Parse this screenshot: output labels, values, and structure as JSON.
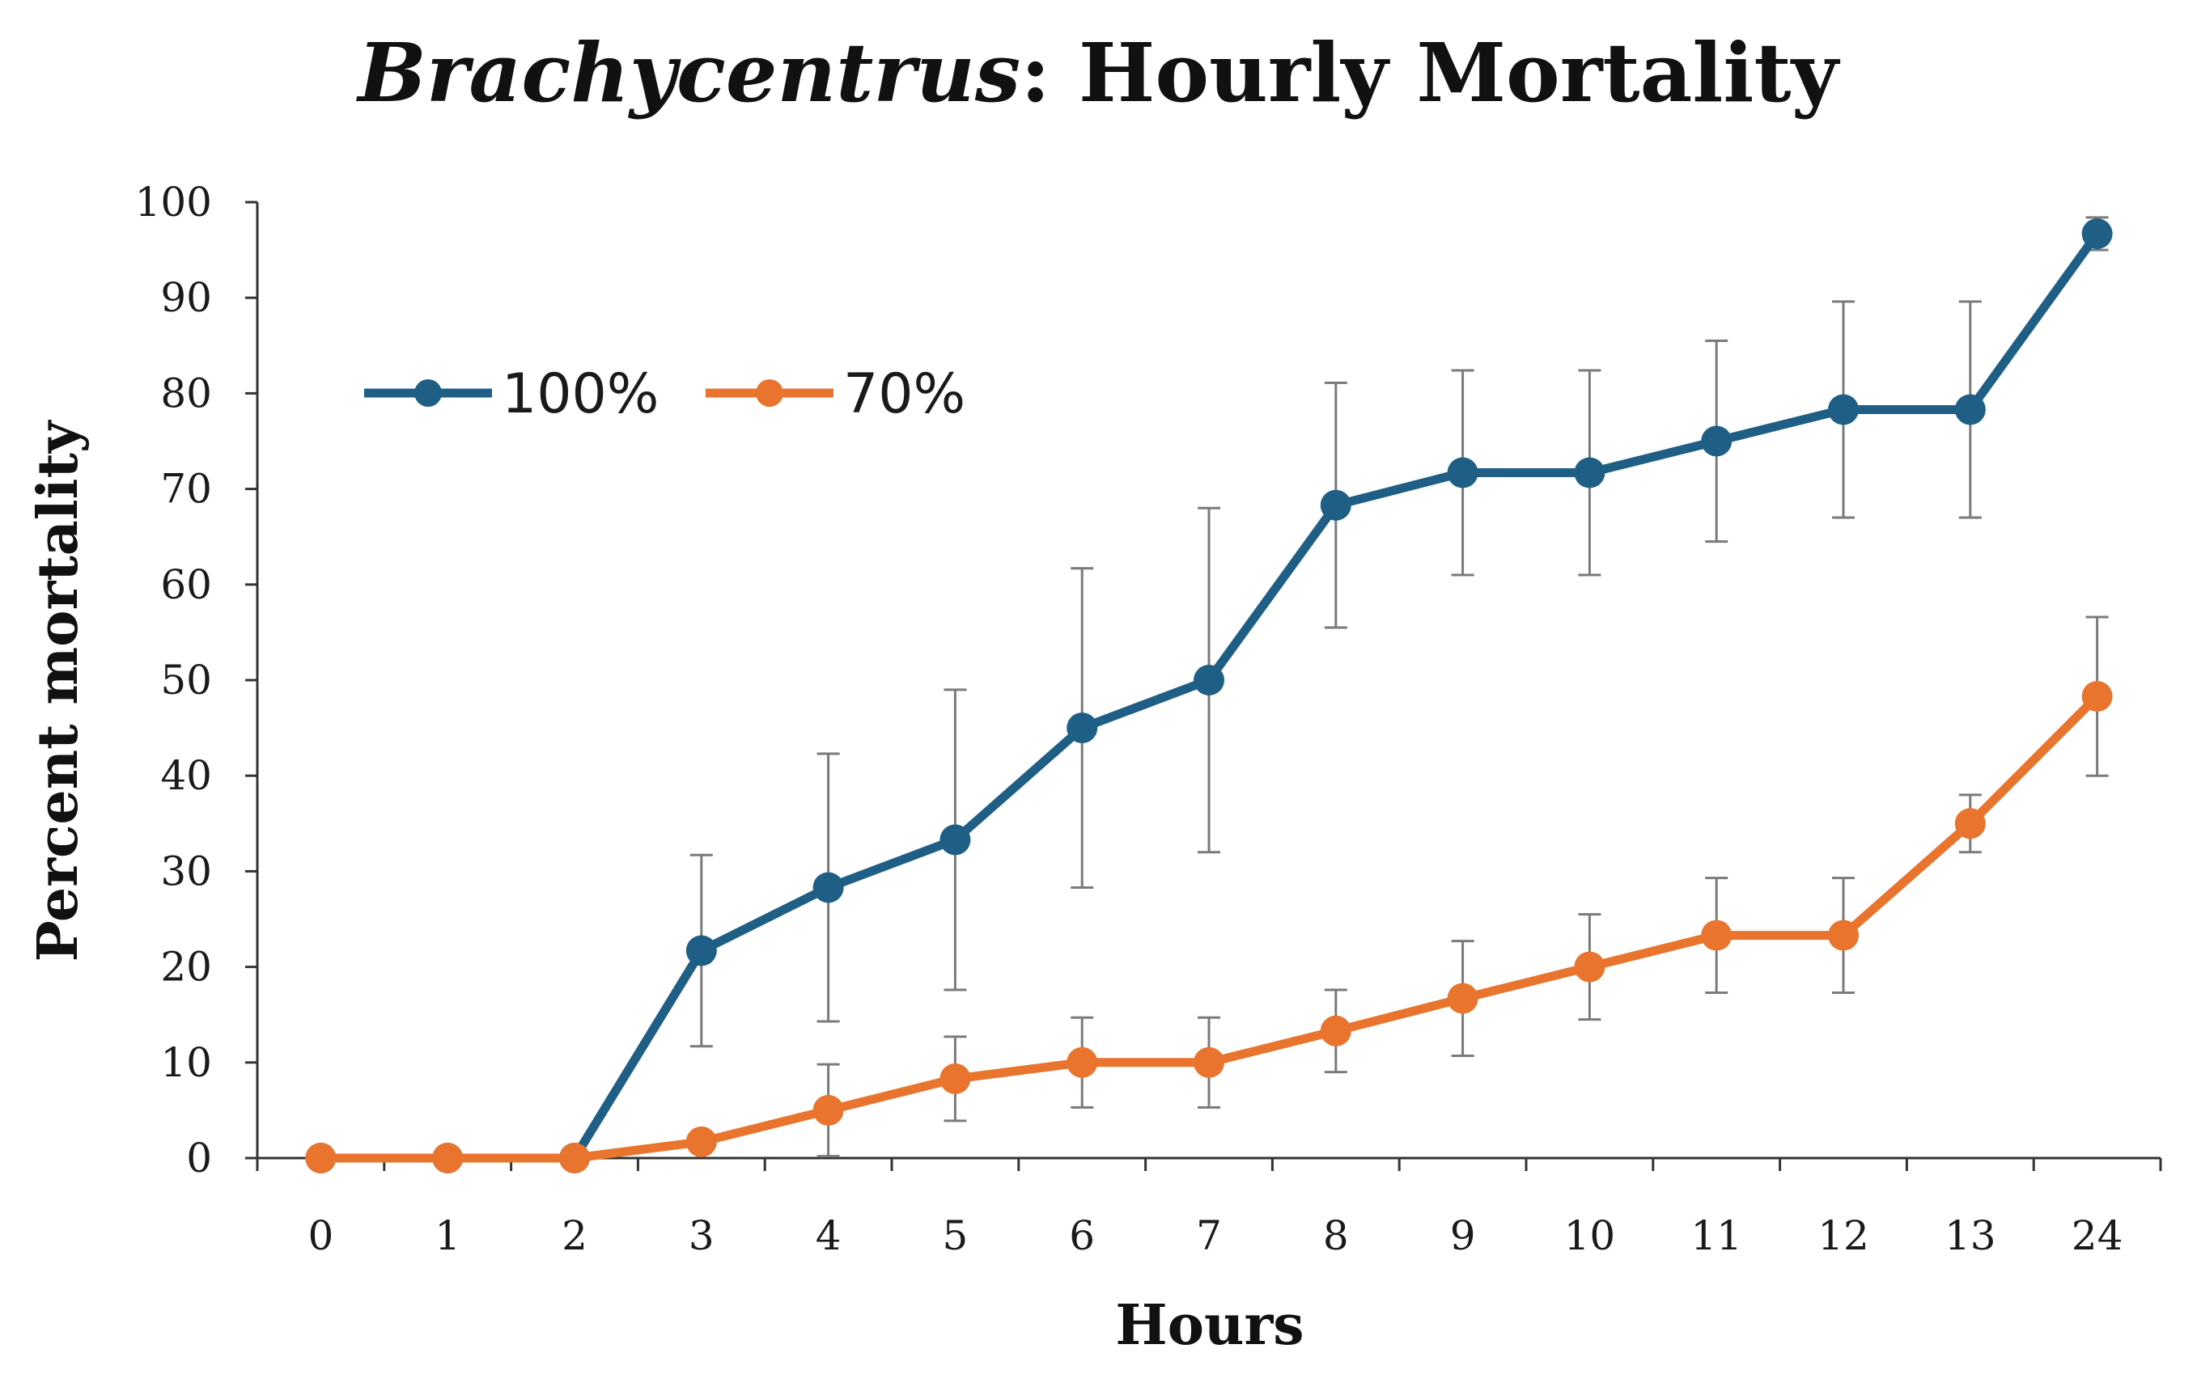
{
  "chart_data": {
    "type": "line",
    "title_italic": "Brachycentrus",
    "title_rest": ": Hourly Mortality",
    "xlabel": "Hours",
    "ylabel": "Percent mortality",
    "categories": [
      "0",
      "1",
      "2",
      "3",
      "4",
      "5",
      "6",
      "7",
      "8",
      "9",
      "10",
      "11",
      "12",
      "13",
      "24"
    ],
    "y_ticks": [
      "0",
      "10",
      "20",
      "30",
      "40",
      "50",
      "60",
      "70",
      "80",
      "90",
      "100"
    ],
    "ylim": [
      0,
      100
    ],
    "grid": false,
    "legend_position": "upper-left",
    "series": [
      {
        "name": "100%",
        "color": "#1f5f85",
        "values": [
          0,
          0,
          0,
          21.7,
          28.3,
          33.3,
          45,
          50,
          68.3,
          71.7,
          71.7,
          75,
          78.3,
          78.3,
          96.7
        ],
        "errors": [
          0,
          0,
          0,
          10,
          14,
          15.7,
          16.7,
          18,
          12.8,
          10.7,
          10.7,
          10.5,
          11.3,
          11.3,
          1.7
        ]
      },
      {
        "name": "70%",
        "color": "#e8742e",
        "values": [
          0,
          0,
          0,
          1.7,
          5,
          8.3,
          10,
          10,
          13.3,
          16.7,
          20,
          23.3,
          23.3,
          35,
          48.3
        ],
        "errors": [
          0,
          0,
          0,
          0,
          4.8,
          4.4,
          4.7,
          4.7,
          4.3,
          6,
          5.5,
          6,
          6,
          3,
          8.3
        ]
      }
    ]
  }
}
